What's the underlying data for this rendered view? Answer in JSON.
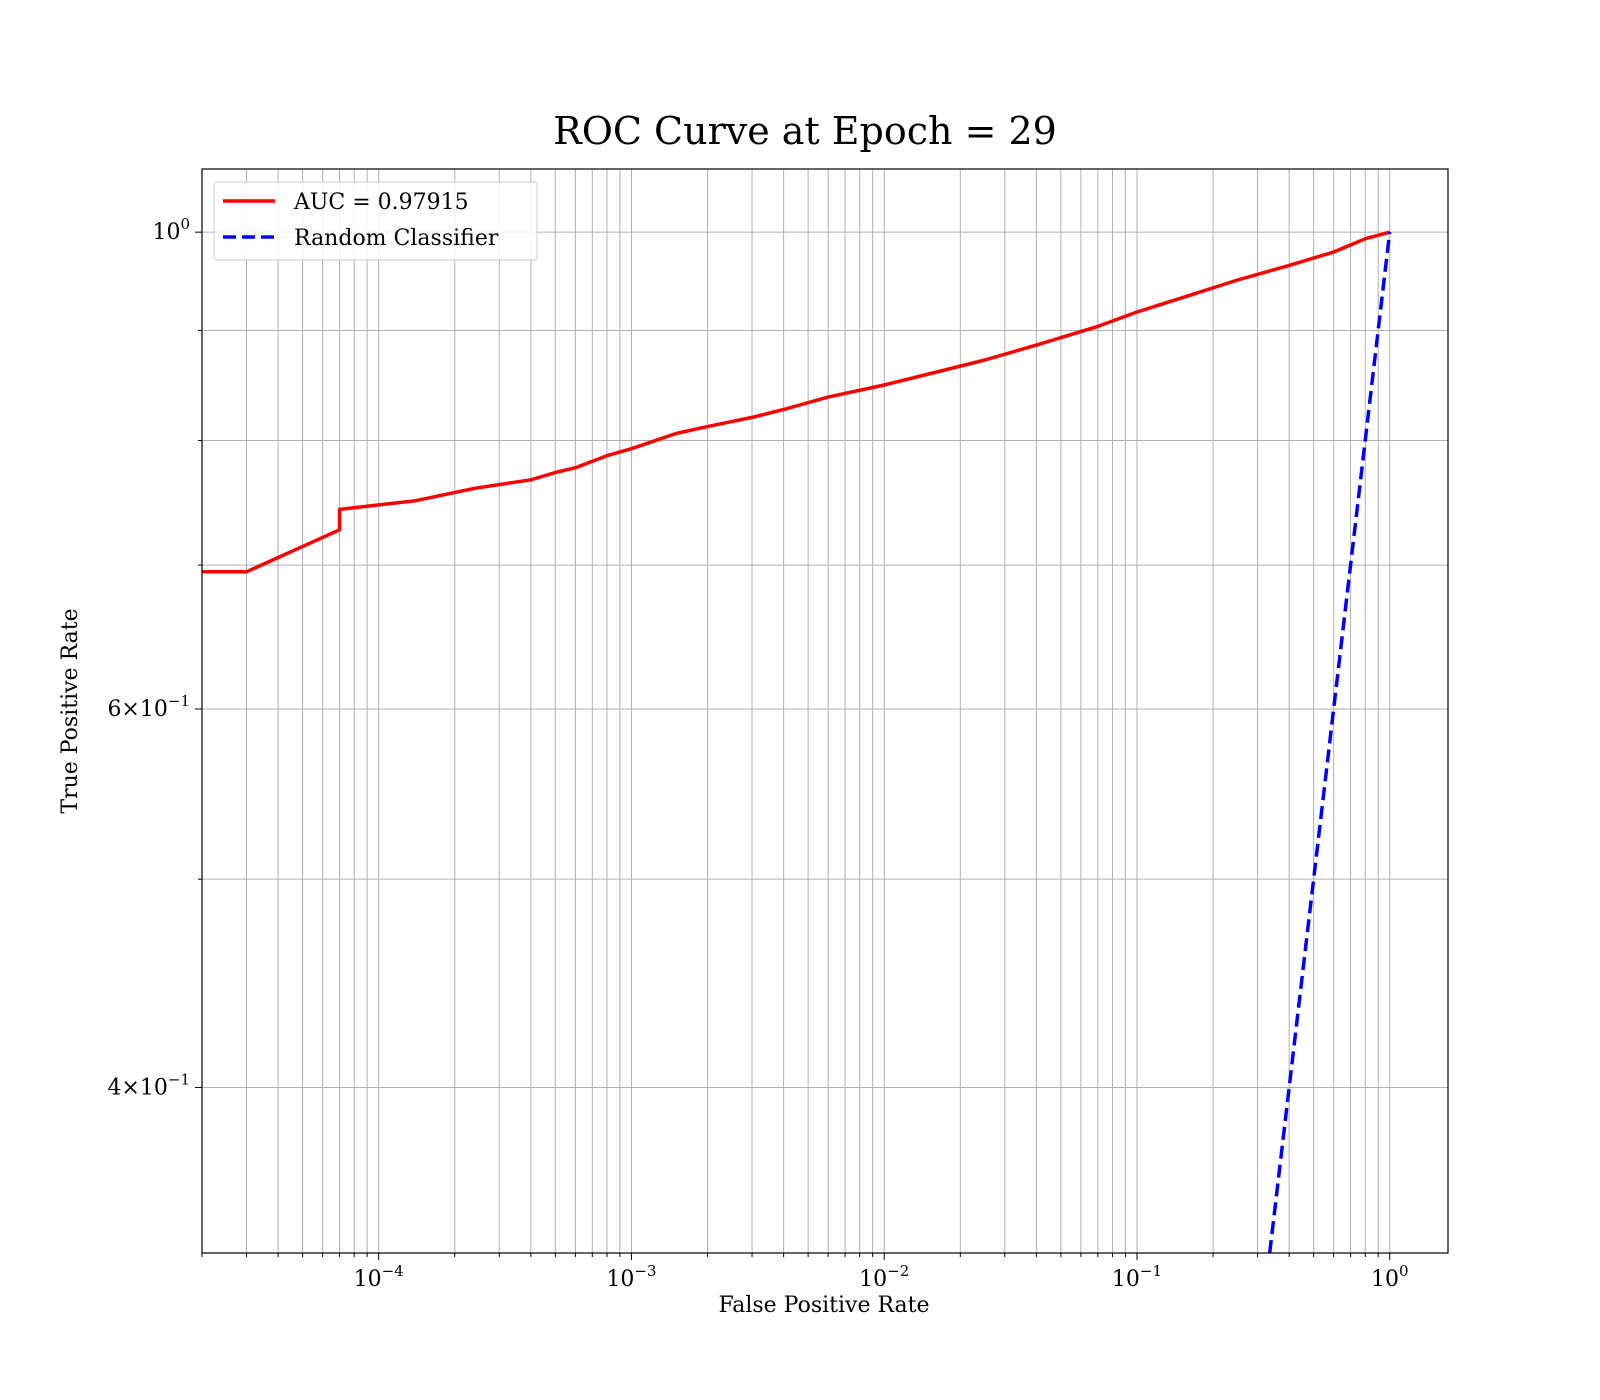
{
  "chart_data": {
    "type": "line",
    "title": "ROC Curve at Epoch = 29",
    "xlabel": "False Positive Rate",
    "ylabel": "True Positive Rate",
    "xscale": "log",
    "yscale": "log",
    "xlim": [
      2e-05,
      1.7
    ],
    "ylim": [
      0.335,
      1.07
    ],
    "grid": true,
    "legend_position": "upper-left",
    "x_ticks": [
      {
        "value": 0.0001,
        "base": "10",
        "exp": "−4"
      },
      {
        "value": 0.001,
        "base": "10",
        "exp": "−3"
      },
      {
        "value": 0.01,
        "base": "10",
        "exp": "−2"
      },
      {
        "value": 0.1,
        "base": "10",
        "exp": "−1"
      },
      {
        "value": 1,
        "base": "10",
        "exp": "0"
      }
    ],
    "y_ticks": [
      {
        "value": 0.4,
        "coef": "4",
        "base": "×10",
        "exp": "−1"
      },
      {
        "value": 0.6,
        "coef": "6",
        "base": "×10",
        "exp": "−1"
      },
      {
        "value": 1.0,
        "coef": "",
        "base": "10",
        "exp": "0"
      }
    ],
    "y_minor_ticks": [
      0.5,
      0.7,
      0.8,
      0.9
    ],
    "series": [
      {
        "name": "AUC = 0.97915",
        "color": "#ff0000",
        "style": "solid",
        "x": [
          2e-05,
          3e-05,
          7e-05,
          7e-05,
          0.00014,
          0.00024,
          0.0004,
          0.0005,
          0.0006,
          0.0008,
          0.001,
          0.0015,
          0.002,
          0.003,
          0.004,
          0.006,
          0.01,
          0.015,
          0.025,
          0.04,
          0.07,
          0.1,
          0.15,
          0.25,
          0.4,
          0.6,
          0.8,
          1.0
        ],
        "y": [
          0.695,
          0.695,
          0.727,
          0.743,
          0.75,
          0.76,
          0.767,
          0.773,
          0.777,
          0.787,
          0.793,
          0.806,
          0.812,
          0.82,
          0.827,
          0.838,
          0.849,
          0.859,
          0.872,
          0.886,
          0.904,
          0.918,
          0.932,
          0.95,
          0.965,
          0.979,
          0.993,
          1.0
        ]
      },
      {
        "name": "Random Classifier",
        "color": "#0000ff",
        "style": "dashed",
        "x": [
          0.335,
          1.0
        ],
        "y": [
          0.335,
          1.0
        ]
      }
    ]
  }
}
